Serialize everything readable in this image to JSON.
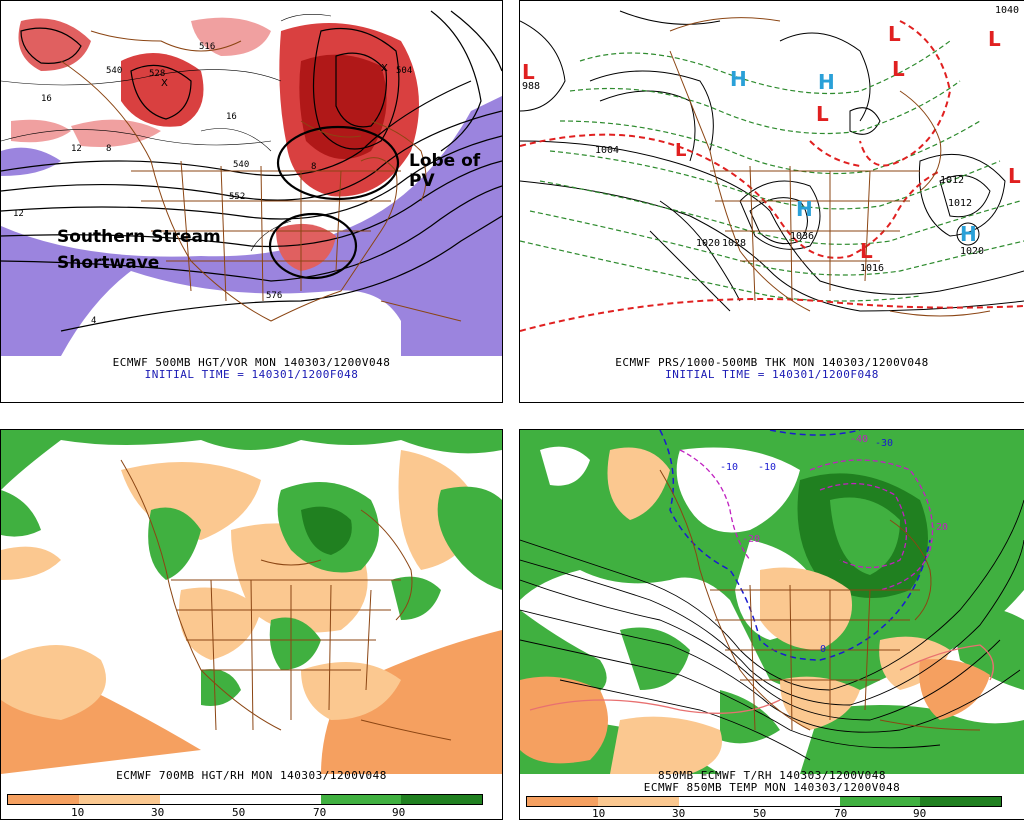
{
  "panels": [
    {
      "id": "p1",
      "caption_line1": "ECMWF 500MB HGT/VOR MON 140303/1200V048",
      "caption_line2": "INITIAL TIME = 140301/1200F048",
      "annotations": [
        "Lobe of PV",
        "Southern Stream",
        "Shortwave"
      ],
      "contour_labels": [
        "540",
        "528",
        "552",
        "576",
        "516",
        "504",
        "16",
        "12",
        "8",
        "4",
        "16",
        "12",
        "8"
      ]
    },
    {
      "id": "p2",
      "caption_line1": "ECMWF PRS/1000-500MB THK MON 140303/1200V048",
      "caption_line2": "INITIAL TIME = 140301/1200F048",
      "pressure_labels": [
        "988",
        "1004",
        "1012",
        "1012",
        "1020",
        "1036",
        "1020",
        "1028",
        "1016",
        "1040"
      ]
    },
    {
      "id": "p3",
      "caption_line1": "ECMWF 700MB HGT/RH MON 140303/1200V048",
      "colorbar_ticks": [
        "10",
        "30",
        "50",
        "70",
        "90"
      ]
    },
    {
      "id": "p4",
      "caption_line1": "850MB ECMWF T/RH 140303/1200V048",
      "caption_line2": "ECMWF 850MB TEMP MON 140303/1200V048",
      "colorbar_ticks": [
        "10",
        "30",
        "50",
        "70",
        "90"
      ],
      "temp_labels": [
        "-10",
        "-20",
        "-10",
        "0",
        "-40",
        "-30",
        "-20"
      ]
    }
  ],
  "legend": {
    "rh_colors": [
      "#f5a060",
      "#fbc890",
      "#ffffff",
      "#ffffff",
      "#40b040",
      "#208020"
    ],
    "vort_colors": [
      "#f0c0c0",
      "#e06060",
      "#c02020"
    ]
  },
  "symbols": {
    "low": "L",
    "high": "H"
  }
}
